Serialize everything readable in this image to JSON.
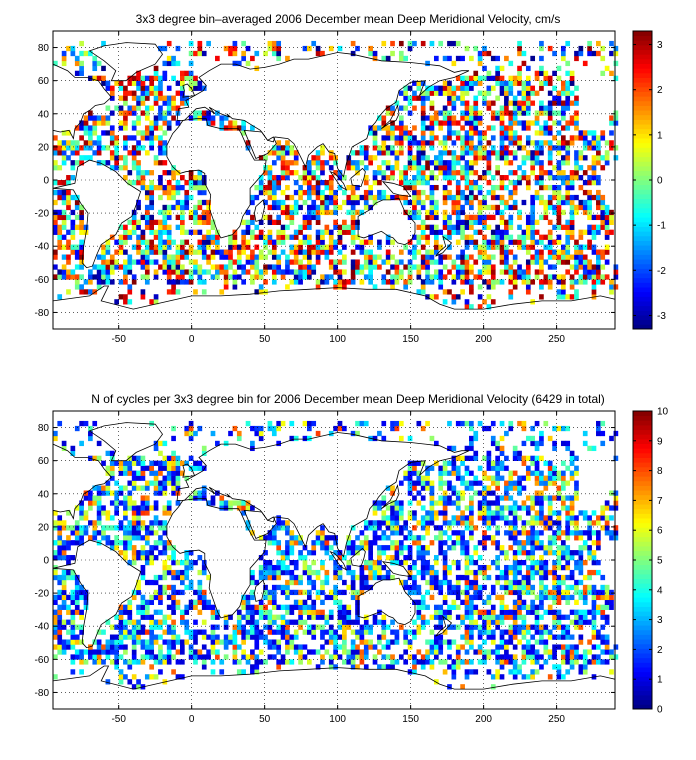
{
  "chart_data": [
    {
      "type": "heatmap",
      "title": "3x3 degree bin–averaged 2006 December mean Deep Meridional Velocity, cm/s",
      "xlabel": "",
      "ylabel": "",
      "xlim": [
        -95,
        290
      ],
      "ylim": [
        -90,
        90
      ],
      "xticks": [
        -50,
        0,
        50,
        100,
        150,
        200,
        250
      ],
      "yticks": [
        -80,
        -60,
        -40,
        -20,
        0,
        20,
        40,
        60,
        80
      ],
      "bin_size_deg": 3,
      "grid": true,
      "colormap": "jet",
      "colorbar": {
        "range": [
          -3.3,
          3.3
        ],
        "ticks": [
          -3,
          -2,
          -1,
          0,
          1,
          2,
          3
        ],
        "position": "right"
      },
      "seed": 1206
    },
    {
      "type": "heatmap",
      "title": "N of cycles per 3x3 degree bin for 2006 December mean Deep Meridional Velocity (6429 in total)",
      "xlabel": "",
      "ylabel": "",
      "xlim": [
        -95,
        290
      ],
      "ylim": [
        -90,
        90
      ],
      "xticks": [
        -50,
        0,
        50,
        100,
        150,
        200,
        250
      ],
      "yticks": [
        -80,
        -60,
        -40,
        -20,
        0,
        20,
        40,
        60,
        80
      ],
      "bin_size_deg": 3,
      "grid": true,
      "colormap": "jet",
      "colorbar": {
        "range": [
          0,
          10
        ],
        "ticks": [
          0,
          1,
          2,
          3,
          4,
          5,
          6,
          7,
          8,
          9,
          10
        ],
        "position": "right"
      },
      "seed": 6429
    }
  ]
}
